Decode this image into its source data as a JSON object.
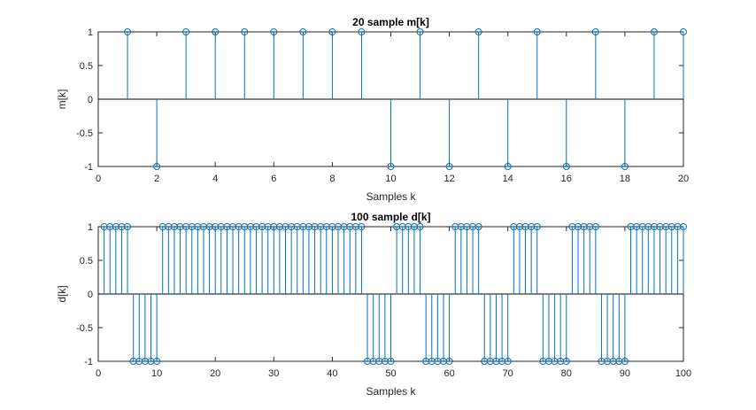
{
  "colors": {
    "stem": "#0072BD",
    "axis": "#262626",
    "background": "#ffffff"
  },
  "chart_data": [
    {
      "type": "stem",
      "title": "20 sample m[k]",
      "xlabel": "Samples k",
      "ylabel": "m[k]",
      "xlim": [
        0,
        20
      ],
      "ylim": [
        -1,
        1
      ],
      "xticks": [
        "0",
        "2",
        "4",
        "6",
        "8",
        "10",
        "12",
        "14",
        "16",
        "18",
        "20"
      ],
      "yticks": [
        "-1",
        "-0.5",
        "0",
        "0.5",
        "1"
      ],
      "x": [
        1,
        2,
        3,
        4,
        5,
        6,
        7,
        8,
        9,
        10,
        11,
        12,
        13,
        14,
        15,
        16,
        17,
        18,
        19,
        20
      ],
      "values": [
        1,
        -1,
        1,
        1,
        1,
        1,
        1,
        1,
        1,
        -1,
        1,
        -1,
        1,
        -1,
        1,
        -1,
        1,
        -1,
        1,
        1
      ]
    },
    {
      "type": "stem",
      "title": "100 sample d[k]",
      "xlabel": "Samples k",
      "ylabel": "d[k]",
      "xlim": [
        0,
        100
      ],
      "ylim": [
        -1,
        1
      ],
      "xticks": [
        "0",
        "10",
        "20",
        "30",
        "40",
        "50",
        "60",
        "70",
        "80",
        "90",
        "100"
      ],
      "yticks": [
        "-1",
        "-0.5",
        "0",
        "0.5",
        "1"
      ],
      "x": [
        1,
        2,
        3,
        4,
        5,
        6,
        7,
        8,
        9,
        10,
        11,
        12,
        13,
        14,
        15,
        16,
        17,
        18,
        19,
        20,
        21,
        22,
        23,
        24,
        25,
        26,
        27,
        28,
        29,
        30,
        31,
        32,
        33,
        34,
        35,
        36,
        37,
        38,
        39,
        40,
        41,
        42,
        43,
        44,
        45,
        46,
        47,
        48,
        49,
        50,
        51,
        52,
        53,
        54,
        55,
        56,
        57,
        58,
        59,
        60,
        61,
        62,
        63,
        64,
        65,
        66,
        67,
        68,
        69,
        70,
        71,
        72,
        73,
        74,
        75,
        76,
        77,
        78,
        79,
        80,
        81,
        82,
        83,
        84,
        85,
        86,
        87,
        88,
        89,
        90,
        91,
        92,
        93,
        94,
        95,
        96,
        97,
        98,
        99,
        100
      ],
      "values": [
        1,
        1,
        1,
        1,
        1,
        -1,
        -1,
        -1,
        -1,
        -1,
        1,
        1,
        1,
        1,
        1,
        1,
        1,
        1,
        1,
        1,
        1,
        1,
        1,
        1,
        1,
        1,
        1,
        1,
        1,
        1,
        1,
        1,
        1,
        1,
        1,
        1,
        1,
        1,
        1,
        1,
        1,
        1,
        1,
        1,
        1,
        -1,
        -1,
        -1,
        -1,
        -1,
        1,
        1,
        1,
        1,
        1,
        -1,
        -1,
        -1,
        -1,
        -1,
        1,
        1,
        1,
        1,
        1,
        -1,
        -1,
        -1,
        -1,
        -1,
        1,
        1,
        1,
        1,
        1,
        -1,
        -1,
        -1,
        -1,
        -1,
        1,
        1,
        1,
        1,
        1,
        -1,
        -1,
        -1,
        -1,
        -1,
        1,
        1,
        1,
        1,
        1,
        1,
        1,
        1,
        1,
        1
      ]
    }
  ]
}
